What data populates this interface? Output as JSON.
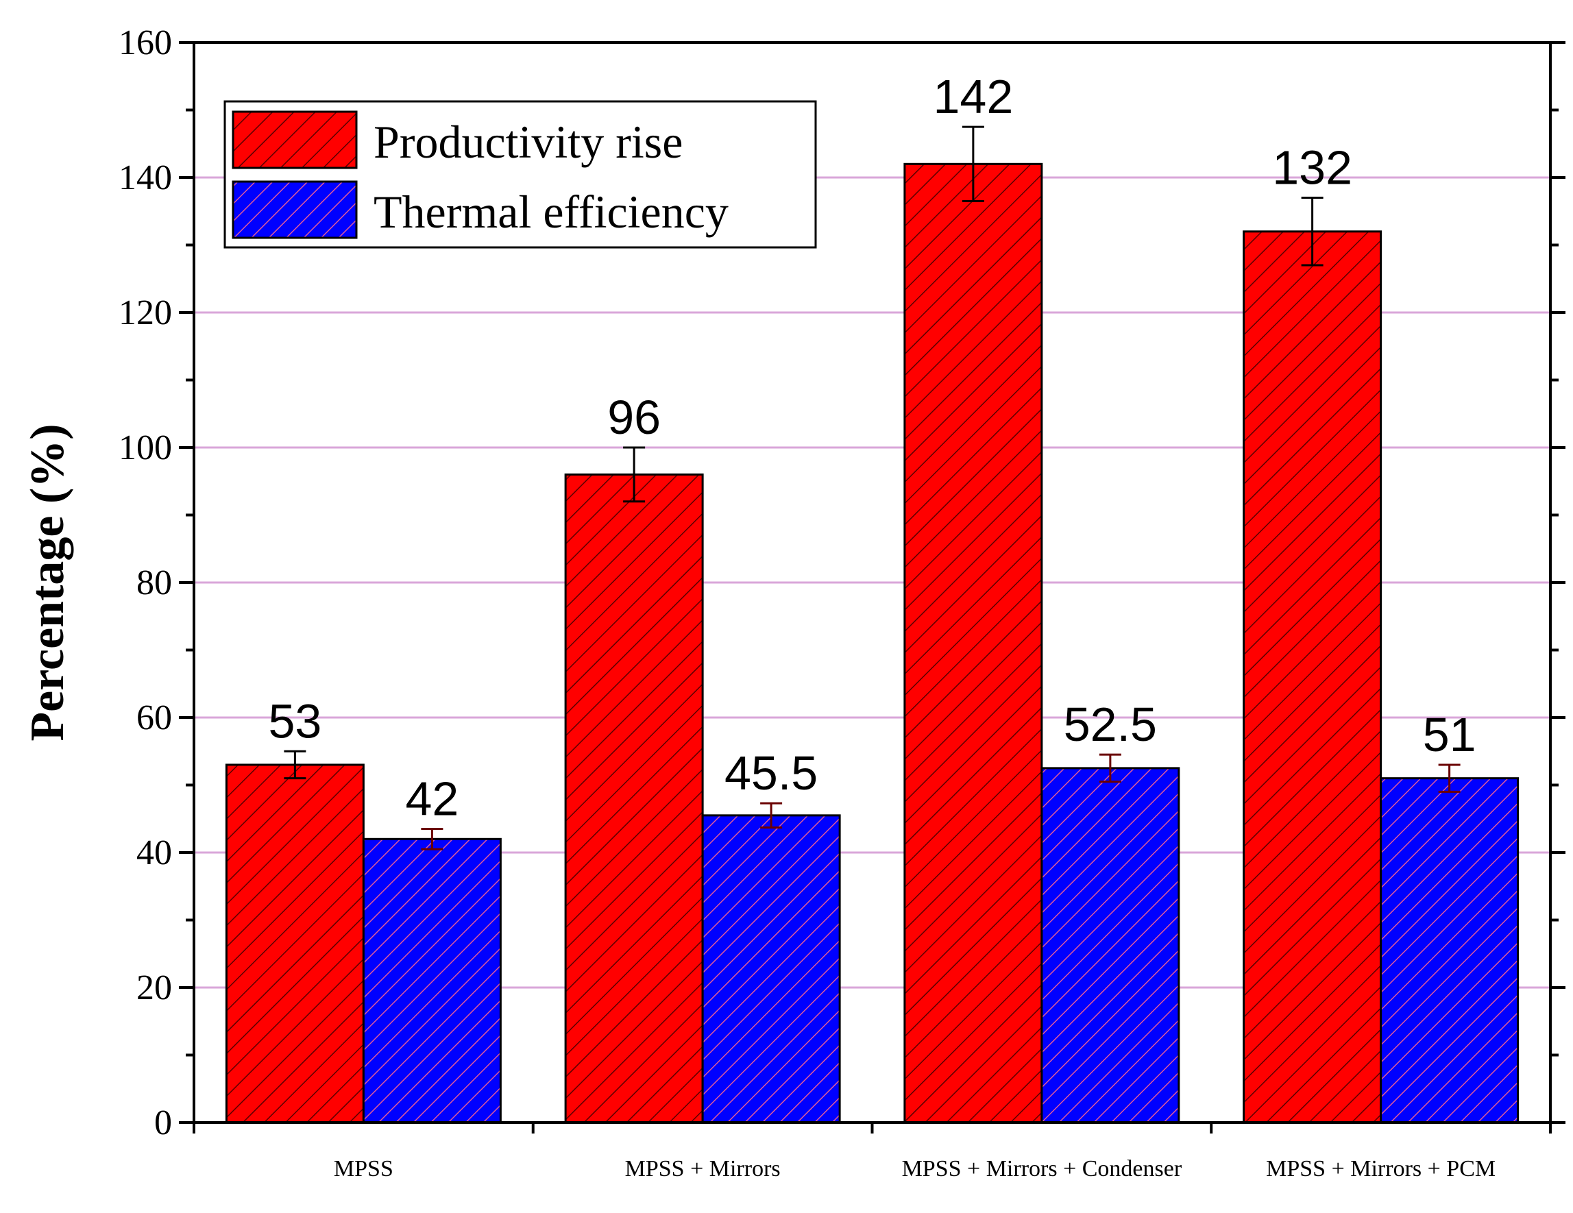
{
  "chart_data": {
    "type": "bar",
    "title": "",
    "xlabel": "",
    "ylabel": "Percentage (%)",
    "ylim": [
      0,
      160
    ],
    "yticks": [
      0,
      20,
      40,
      60,
      80,
      100,
      120,
      140,
      160
    ],
    "ytick_labels": [
      "0",
      "20",
      "40",
      "60",
      "80",
      "100",
      "120",
      "140",
      "160"
    ],
    "grid": true,
    "legend_position": "top-left",
    "categories": [
      "MPSS",
      "MPSS + Mirrors",
      "MPSS + Mirrors + Condenser",
      "MPSS + Mirrors + PCM"
    ],
    "series": [
      {
        "name": "Productivity rise",
        "color": "#ff0000",
        "values": [
          53,
          96,
          142,
          132
        ],
        "errors": [
          2,
          4,
          5.5,
          5
        ],
        "labels": [
          "53",
          "96",
          "142",
          "132"
        ]
      },
      {
        "name": "Thermal efficiency",
        "color": "#0000ff",
        "values": [
          42,
          45.5,
          52.5,
          51
        ],
        "errors": [
          1.5,
          1.8,
          2,
          2
        ],
        "labels": [
          "42",
          "45.5",
          "52.5",
          "51"
        ]
      }
    ],
    "colors": {
      "grid": "#d9a6d9",
      "axis": "#000000",
      "hatch_red": "#5a0000",
      "hatch_blue": "#e05a9a"
    }
  }
}
